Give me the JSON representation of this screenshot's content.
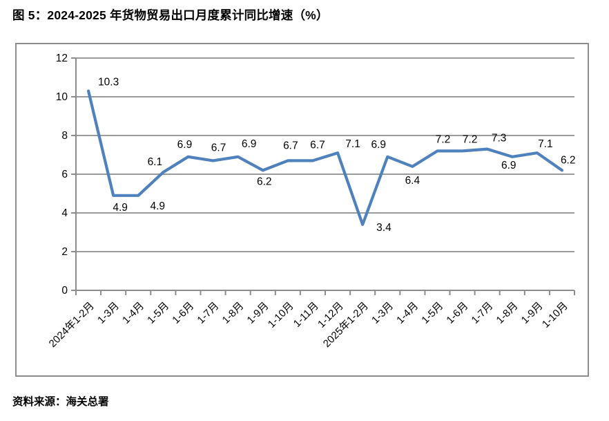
{
  "page": {
    "title": "图 5：2024-2025 年货物贸易出口月度累计同比增速（%）",
    "source": "资料来源：海关总署"
  },
  "chart_data": {
    "type": "line",
    "title": "图 5：2024-2025 年货物贸易出口月度累计同比增速（%）",
    "categories": [
      "2024年1-2月",
      "1-3月",
      "1-4月",
      "1-5月",
      "1-6月",
      "1-7月",
      "1-8月",
      "1-9月",
      "1-10月",
      "1-11月",
      "1-12月",
      "2025年1-2月",
      "1-3月",
      "1-4月",
      "1-5月",
      "1-6月",
      "1-7月",
      "1-8月",
      "1-9月",
      "1-10月"
    ],
    "values": [
      10.3,
      4.9,
      4.9,
      6.1,
      6.9,
      6.7,
      6.9,
      6.2,
      6.7,
      6.7,
      7.1,
      3.4,
      6.9,
      6.4,
      7.2,
      7.2,
      7.3,
      6.9,
      7.1,
      6.2
    ],
    "xlabel": "",
    "ylabel": "",
    "ylim": [
      0,
      12
    ],
    "yticks": [
      0,
      2,
      4,
      6,
      8,
      10,
      12
    ],
    "grid": true,
    "legend_position": "none",
    "line_color": "#4F81BD",
    "grid_color": "#8C8C8C",
    "axis_color": "#8C8C8C",
    "text_color": "#000000",
    "label_offsets": [
      [
        14,
        -8,
        "s"
      ],
      [
        10,
        22,
        "m"
      ],
      [
        28,
        20,
        "m"
      ],
      [
        -12,
        -10,
        "m"
      ],
      [
        -5,
        -13,
        "m"
      ],
      [
        8,
        -14,
        "m"
      ],
      [
        16,
        -14,
        "m"
      ],
      [
        2,
        21,
        "m"
      ],
      [
        4,
        -17,
        "m"
      ],
      [
        7,
        -18,
        "m"
      ],
      [
        22,
        -8,
        "m"
      ],
      [
        20,
        9,
        "s"
      ],
      [
        -13,
        -13,
        "m"
      ],
      [
        0,
        25,
        "m"
      ],
      [
        8,
        -12,
        "m"
      ],
      [
        11,
        -12,
        "m"
      ],
      [
        17,
        -11,
        "m"
      ],
      [
        -5,
        17,
        "m"
      ],
      [
        12,
        -8,
        "m"
      ],
      [
        -2,
        -10,
        "s"
      ]
    ]
  }
}
